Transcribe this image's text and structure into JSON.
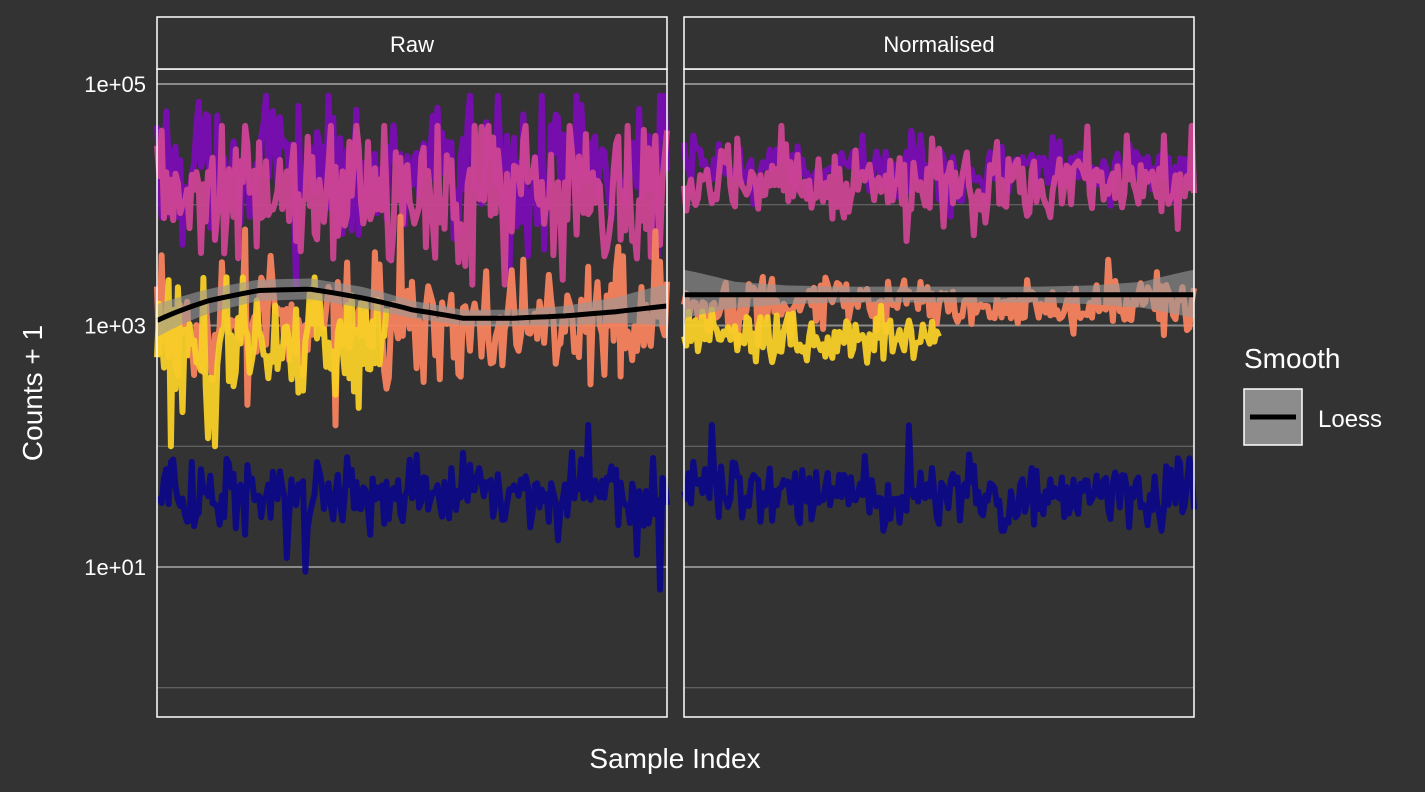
{
  "chart_data": {
    "type": "line",
    "xlabel": "Sample Index",
    "ylabel": "Counts + 1",
    "y_scale": "log10",
    "ylim": [
      0.5,
      50000
    ],
    "y_ticks": [
      {
        "value": 10,
        "label": "1e+01"
      },
      {
        "value": 1000,
        "label": "1e+03"
      },
      {
        "value": 100000,
        "label": "1e+05"
      }
    ],
    "y_minor_gridlines": [
      1,
      100,
      10000
    ],
    "grid": true,
    "x_ticks_shown": false,
    "facets": [
      {
        "label": "Raw",
        "series": [
          {
            "color": "#7A0DB5",
            "level": 20000,
            "spread": 0.28,
            "min": 2000,
            "max": 80000
          },
          {
            "color": "#CC4592",
            "level": 12000,
            "spread": 0.3,
            "min": 700,
            "max": 45000
          },
          {
            "color": "#F7835E",
            "level": 1000,
            "spread": 0.22,
            "min": 60,
            "max": 8000
          },
          {
            "color": "#F8CF27",
            "level": 700,
            "spread": 0.25,
            "min": 100,
            "max": 2500,
            "x_end": 0.45
          },
          {
            "color": "#0D0887",
            "level": 40,
            "spread": 0.14,
            "min": 3,
            "max": 150
          }
        ],
        "loess": {
          "x": [
            0,
            0.1,
            0.2,
            0.3,
            0.4,
            0.5,
            0.6,
            0.7,
            0.8,
            0.9,
            1.0
          ],
          "y": [
            1100,
            1600,
            1950,
            2000,
            1700,
            1350,
            1150,
            1150,
            1200,
            1300,
            1450
          ],
          "ribbon_lower": [
            800,
            1250,
            1600,
            1650,
            1400,
            1150,
            1000,
            1000,
            1000,
            1050,
            1000
          ],
          "ribbon_upper": [
            1500,
            2000,
            2400,
            2450,
            2100,
            1600,
            1350,
            1350,
            1450,
            1700,
            2200
          ],
          "color": "#000000",
          "ribbon_color": "#999999"
        }
      },
      {
        "label": "Normalised",
        "series": [
          {
            "color": "#7A0DB5",
            "level": 20000,
            "spread": 0.12,
            "min": 8000,
            "max": 50000
          },
          {
            "color": "#CC4592",
            "level": 15000,
            "spread": 0.15,
            "min": 5000,
            "max": 45000
          },
          {
            "color": "#F7835E",
            "level": 1500,
            "spread": 0.1,
            "min": 400,
            "max": 3500
          },
          {
            "color": "#F8CF27",
            "level": 800,
            "spread": 0.1,
            "min": 300,
            "max": 1600,
            "x_end": 0.5
          },
          {
            "color": "#0D0887",
            "level": 40,
            "spread": 0.13,
            "min": 20,
            "max": 150
          }
        ],
        "loess": {
          "x": [
            0,
            0.1,
            0.2,
            0.3,
            0.4,
            0.5,
            0.6,
            0.7,
            0.8,
            0.9,
            1.0
          ],
          "y": [
            1800,
            1800,
            1800,
            1800,
            1800,
            1800,
            1800,
            1800,
            1800,
            1800,
            1800
          ],
          "ribbon_lower": [
            1150,
            1400,
            1500,
            1550,
            1550,
            1550,
            1550,
            1550,
            1500,
            1400,
            1150
          ],
          "ribbon_upper": [
            2900,
            2300,
            2150,
            2100,
            2100,
            2100,
            2100,
            2100,
            2150,
            2300,
            2900
          ],
          "color": "#000000",
          "ribbon_color": "#999999"
        }
      }
    ],
    "legend": {
      "title": "Smooth",
      "entries": [
        {
          "label": "Loess",
          "color": "#000000",
          "key_fill": "#8C8C8C"
        }
      ],
      "position": "right"
    }
  }
}
